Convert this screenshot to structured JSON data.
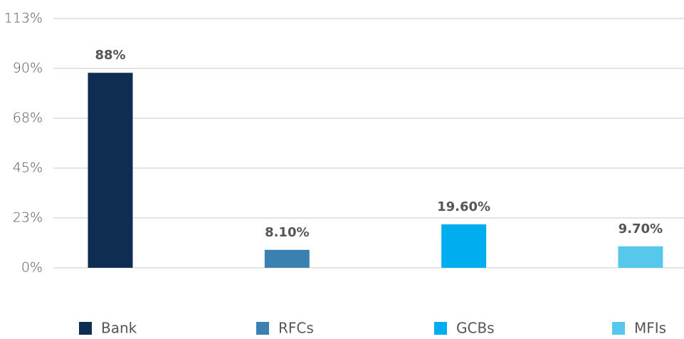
{
  "chart_data": {
    "type": "bar",
    "series": [
      {
        "name": "Bank",
        "color": "#0f2d52",
        "values": [
          88
        ],
        "value_labels": [
          "88%"
        ]
      },
      {
        "name": "RFCs",
        "color": "#3a80b0",
        "values": [
          8.1
        ],
        "value_labels": [
          "8.10%"
        ]
      },
      {
        "name": "GCBs",
        "color": "#00aeef",
        "values": [
          19.6
        ],
        "value_labels": [
          "19.60%"
        ]
      },
      {
        "name": "MFIs",
        "color": "#55c8ec",
        "values": [
          9.7
        ],
        "value_labels": [
          "9.70%"
        ]
      }
    ],
    "ylim": [
      0,
      112.5
    ],
    "yticks": [
      {
        "value": 0,
        "label": "0%"
      },
      {
        "value": 22.5,
        "label": "23%"
      },
      {
        "value": 45,
        "label": "45%"
      },
      {
        "value": 67.5,
        "label": "68%"
      },
      {
        "value": 90,
        "label": "90%"
      },
      {
        "value": 112.5,
        "label": "113%"
      }
    ],
    "grid": true,
    "legend": "bottom"
  }
}
